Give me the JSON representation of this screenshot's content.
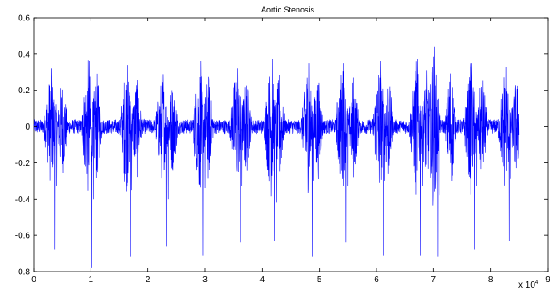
{
  "chart_data": {
    "type": "line",
    "title": "Aortic Stenosis",
    "xlabel": "",
    "ylabel": "",
    "x_multiplier_label": "x 10",
    "x_multiplier_exponent": "4",
    "xlim": [
      0,
      9
    ],
    "ylim": [
      -0.8,
      0.6
    ],
    "x_ticks": [
      "0",
      "1",
      "2",
      "3",
      "4",
      "5",
      "6",
      "7",
      "8",
      "9"
    ],
    "y_ticks": [
      "0.6",
      "0.4",
      "0.2",
      "0",
      "-0.2",
      "-0.4",
      "-0.6",
      "-0.8"
    ],
    "grid": false,
    "legend": "none",
    "line_color": "#0000ff",
    "series": [
      {
        "x_end": 8.5,
        "beats": [
          {
            "s1": 0.3,
            "s2": 0.5,
            "peak_max": 0.32,
            "peak_min": -0.33,
            "spike_min": -0.68
          },
          {
            "s1": 0.95,
            "s2": 1.1,
            "peak_max": 0.36,
            "peak_min": -0.4,
            "spike_min": -0.78
          },
          {
            "s1": 1.62,
            "s2": 1.8,
            "peak_max": 0.34,
            "peak_min": -0.35,
            "spike_min": -0.72
          },
          {
            "s1": 2.25,
            "s2": 2.43,
            "peak_max": 0.29,
            "peak_min": -0.4,
            "spike_min": -0.66
          },
          {
            "s1": 2.9,
            "s2": 3.05,
            "peak_max": 0.36,
            "peak_min": -0.34,
            "spike_min": -0.71
          },
          {
            "s1": 3.55,
            "s2": 3.72,
            "peak_max": 0.32,
            "peak_min": -0.33,
            "spike_min": -0.64
          },
          {
            "s1": 4.15,
            "s2": 4.3,
            "peak_max": 0.37,
            "peak_min": -0.42,
            "spike_min": -0.63
          },
          {
            "s1": 4.8,
            "s2": 4.97,
            "peak_max": 0.35,
            "peak_min": -0.3,
            "spike_min": -0.72
          },
          {
            "s1": 5.4,
            "s2": 5.6,
            "peak_max": 0.35,
            "peak_min": -0.33,
            "spike_min": -0.64
          },
          {
            "s1": 6.05,
            "s2": 6.2,
            "peak_max": 0.36,
            "peak_min": -0.3,
            "spike_min": -0.71
          },
          {
            "s1": 6.7,
            "s2": 6.88,
            "peak_max": 0.37,
            "peak_min": -0.33,
            "spike_min": -0.71
          },
          {
            "s1": 7.0,
            "s2": 7.3,
            "peak_max": 0.44,
            "peak_min": -0.38,
            "spike_min": -0.72
          },
          {
            "s1": 7.65,
            "s2": 7.85,
            "peak_max": 0.35,
            "peak_min": -0.33,
            "spike_min": -0.68
          },
          {
            "s1": 8.25,
            "s2": 8.45,
            "peak_max": 0.33,
            "peak_min": -0.29,
            "spike_min": -0.63
          }
        ],
        "baseline_amplitude": 0.04
      }
    ]
  }
}
